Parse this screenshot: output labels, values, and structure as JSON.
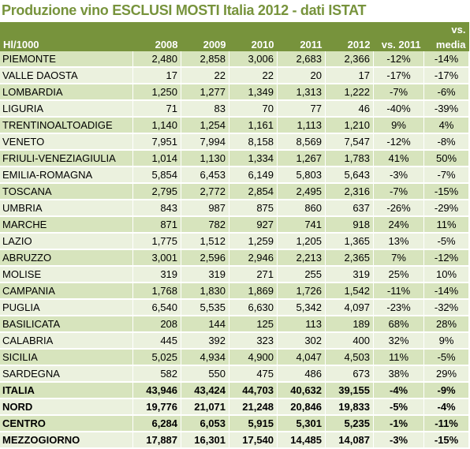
{
  "title": "Produzione vino ESCLUSI MOSTI Italia 2012 - dati ISTAT",
  "header": {
    "unit": "Hl/1000",
    "years": [
      "2008",
      "2009",
      "2010",
      "2011",
      "2012"
    ],
    "vs2011": "vs. 2011",
    "vs_media_top": "vs.",
    "vs_media_bottom": "media"
  },
  "rows": [
    {
      "name": "PIEMONTE",
      "values": [
        "2,480",
        "2,858",
        "3,006",
        "2,683",
        "2,366"
      ],
      "vs2011": "-12%",
      "vs_media": "-14%"
    },
    {
      "name": "VALLE DAOSTA",
      "values": [
        "17",
        "22",
        "22",
        "20",
        "17"
      ],
      "vs2011": "-17%",
      "vs_media": "-17%"
    },
    {
      "name": "LOMBARDIA",
      "values": [
        "1,250",
        "1,277",
        "1,349",
        "1,313",
        "1,222"
      ],
      "vs2011": "-7%",
      "vs_media": "-6%"
    },
    {
      "name": "LIGURIA",
      "values": [
        "71",
        "83",
        "70",
        "77",
        "46"
      ],
      "vs2011": "-40%",
      "vs_media": "-39%"
    },
    {
      "name": "TRENTINOALTOADIGE",
      "values": [
        "1,140",
        "1,254",
        "1,161",
        "1,113",
        "1,210"
      ],
      "vs2011": "9%",
      "vs_media": "4%"
    },
    {
      "name": "VENETO",
      "values": [
        "7,951",
        "7,994",
        "8,158",
        "8,569",
        "7,547"
      ],
      "vs2011": "-12%",
      "vs_media": "-8%"
    },
    {
      "name": "FRIULI-VENEZIAGIULIA",
      "values": [
        "1,014",
        "1,130",
        "1,334",
        "1,267",
        "1,783"
      ],
      "vs2011": "41%",
      "vs_media": "50%"
    },
    {
      "name": "EMILIA-ROMAGNA",
      "values": [
        "5,854",
        "6,453",
        "6,149",
        "5,803",
        "5,643"
      ],
      "vs2011": "-3%",
      "vs_media": "-7%"
    },
    {
      "name": "TOSCANA",
      "values": [
        "2,795",
        "2,772",
        "2,854",
        "2,495",
        "2,316"
      ],
      "vs2011": "-7%",
      "vs_media": "-15%"
    },
    {
      "name": "UMBRIA",
      "values": [
        "843",
        "987",
        "875",
        "860",
        "637"
      ],
      "vs2011": "-26%",
      "vs_media": "-29%"
    },
    {
      "name": "MARCHE",
      "values": [
        "871",
        "782",
        "927",
        "741",
        "918"
      ],
      "vs2011": "24%",
      "vs_media": "11%"
    },
    {
      "name": "LAZIO",
      "values": [
        "1,775",
        "1,512",
        "1,259",
        "1,205",
        "1,365"
      ],
      "vs2011": "13%",
      "vs_media": "-5%"
    },
    {
      "name": "ABRUZZO",
      "values": [
        "3,001",
        "2,596",
        "2,946",
        "2,213",
        "2,365"
      ],
      "vs2011": "7%",
      "vs_media": "-12%"
    },
    {
      "name": "MOLISE",
      "values": [
        "319",
        "319",
        "271",
        "255",
        "319"
      ],
      "vs2011": "25%",
      "vs_media": "10%"
    },
    {
      "name": "CAMPANIA",
      "values": [
        "1,768",
        "1,830",
        "1,869",
        "1,726",
        "1,542"
      ],
      "vs2011": "-11%",
      "vs_media": "-14%"
    },
    {
      "name": "PUGLIA",
      "values": [
        "6,540",
        "5,535",
        "6,630",
        "5,342",
        "4,097"
      ],
      "vs2011": "-23%",
      "vs_media": "-32%"
    },
    {
      "name": "BASILICATA",
      "values": [
        "208",
        "144",
        "125",
        "113",
        "189"
      ],
      "vs2011": "68%",
      "vs_media": "28%"
    },
    {
      "name": "CALABRIA",
      "values": [
        "445",
        "392",
        "323",
        "302",
        "400"
      ],
      "vs2011": "32%",
      "vs_media": "9%"
    },
    {
      "name": "SICILIA",
      "values": [
        "5,025",
        "4,934",
        "4,900",
        "4,047",
        "4,503"
      ],
      "vs2011": "11%",
      "vs_media": "-5%"
    },
    {
      "name": "SARDEGNA",
      "values": [
        "582",
        "550",
        "475",
        "486",
        "673"
      ],
      "vs2011": "38%",
      "vs_media": "29%"
    },
    {
      "name": "ITALIA",
      "values": [
        "43,946",
        "43,424",
        "44,703",
        "40,632",
        "39,155"
      ],
      "vs2011": "-4%",
      "vs_media": "-9%",
      "total": true
    },
    {
      "name": "NORD",
      "values": [
        "19,776",
        "21,071",
        "21,248",
        "20,846",
        "19,833"
      ],
      "vs2011": "-5%",
      "vs_media": "-4%",
      "total": true
    },
    {
      "name": "CENTRO",
      "values": [
        "6,284",
        "6,053",
        "5,915",
        "5,301",
        "5,235"
      ],
      "vs2011": "-1%",
      "vs_media": "-11%",
      "total": true
    },
    {
      "name": "MEZZOGIORNO",
      "values": [
        "17,887",
        "16,301",
        "17,540",
        "14,485",
        "14,087"
      ],
      "vs2011": "-3%",
      "vs_media": "-15%",
      "total": true
    }
  ],
  "colors": {
    "title": "#77933c",
    "header_bg": "#77933c",
    "row_dark": "#d7e4bd",
    "row_light": "#ebf1de"
  }
}
